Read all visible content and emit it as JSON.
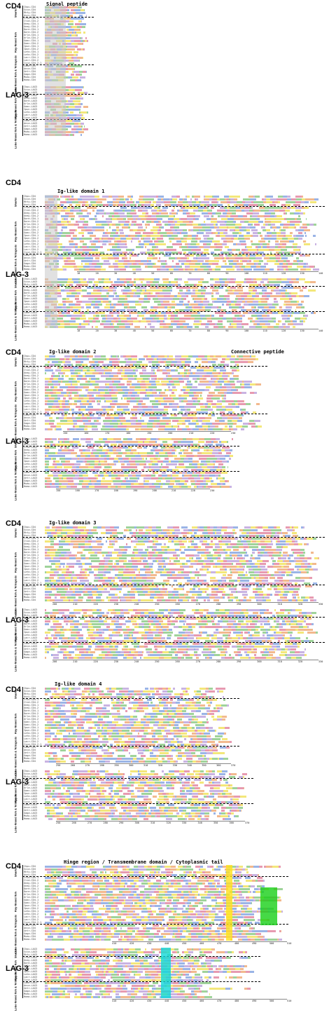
{
  "category_labels": {
    "cd4": "CD4",
    "lag3": "LAG-3"
  },
  "group_labels": {
    "sharks": "Sharks",
    "ray_finned": "Ray-finned fish",
    "lobe_finned": "Lobe-finned fish & Tetrapods"
  },
  "section_titles": {
    "s1": "Signal peptide",
    "s2": "Ig-like domain 1",
    "s3a": "Ig-like domain 2",
    "s3b": "Connective peptide",
    "s4": "Ig-like domain 3",
    "s5": "Ig-like domain 4",
    "s6": "Hinge region    /    Transmembrane domain    /    Cytoplasmic tail"
  },
  "sequences": {
    "cd4_sharks": [
      "Chpu-CD4",
      "Scca-CD4",
      "Rhty-CD4",
      "Ascu-CD4"
    ],
    "cd4_ray": [
      "Ctid-CD4-1",
      "Ctid-CD4-2",
      "Onmy-CD4-1",
      "Onmy-CD4-2",
      "Dare-CD4-1",
      "Dare-CD4-2",
      "Orla-CD4-1",
      "Orla-CD4-2",
      "Gaac-CD4-1",
      "Gaac-CD4-2",
      "Ipun-CD4-1",
      "Ipun-CD4-2",
      "Lato-CD4-1",
      "Lato-CD4-2",
      "Lacr-CD4-1",
      "Lacr-CD4-2",
      "Cyca-CD4-2.1"
    ],
    "cd4_lobe": [
      "Lame-CD4",
      "Anca-CD4",
      "Xetr-CD4",
      "Gaga-CD4",
      "Mumu-CD4",
      "Homo-CD4"
    ],
    "lag3_sharks": [
      "Chpu-LAG3",
      "Scca-LAG3",
      "Rhty-LAG3"
    ],
    "lag3_ray": [
      "Ctid-LAG3",
      "Onmy-LAG3",
      "Dare-LAG3",
      "Orla-LAG3",
      "Gaac-LAG3",
      "Ipun-LAG3",
      "Lato-LAG3",
      "Lacr-LAG3",
      "Cyca-LAG3"
    ],
    "lag3_lobe": [
      "Lame-LAG3",
      "Anca-LAG3",
      "Xetr-LAG3",
      "Gaga-LAG3",
      "Mumu-LAG3",
      "Homo-LAG3"
    ]
  },
  "rulers": {
    "r2": [
      "10",
      "20",
      "30",
      "40",
      "50",
      "60",
      "70",
      "80",
      "90",
      "100",
      "110",
      "120",
      "130",
      "140"
    ],
    "r3": [
      "150",
      "160",
      "170",
      "180",
      "190",
      "200",
      "210",
      "220",
      "230"
    ],
    "r4": [
      "200",
      "210",
      "220",
      "230",
      "240",
      "250",
      "260",
      "270",
      "280",
      "290",
      "300",
      "310",
      "320",
      "330"
    ],
    "r5": [
      "250",
      "260",
      "270",
      "280",
      "290",
      "300",
      "310",
      "320",
      "330",
      "340",
      "350",
      "360",
      "370"
    ],
    "r6": [
      "410",
      "420",
      "430",
      "440",
      "450",
      "460",
      "470",
      "480",
      "490",
      "500",
      "510"
    ]
  },
  "colors": {
    "hydrophobic": "#f2b98e",
    "polar": "#9fd39a",
    "positive": "#9ab4e6",
    "negative": "#e79ab0",
    "cysteine": "#f3e77a",
    "aromatic": "#c9b3e2",
    "gap": "#bbbbbb",
    "signal_box": "#c8c8c8",
    "tm_highlight": "#ffe11a",
    "cd4_motif": "#18d018",
    "lag3_motif": "#10d8d8"
  }
}
